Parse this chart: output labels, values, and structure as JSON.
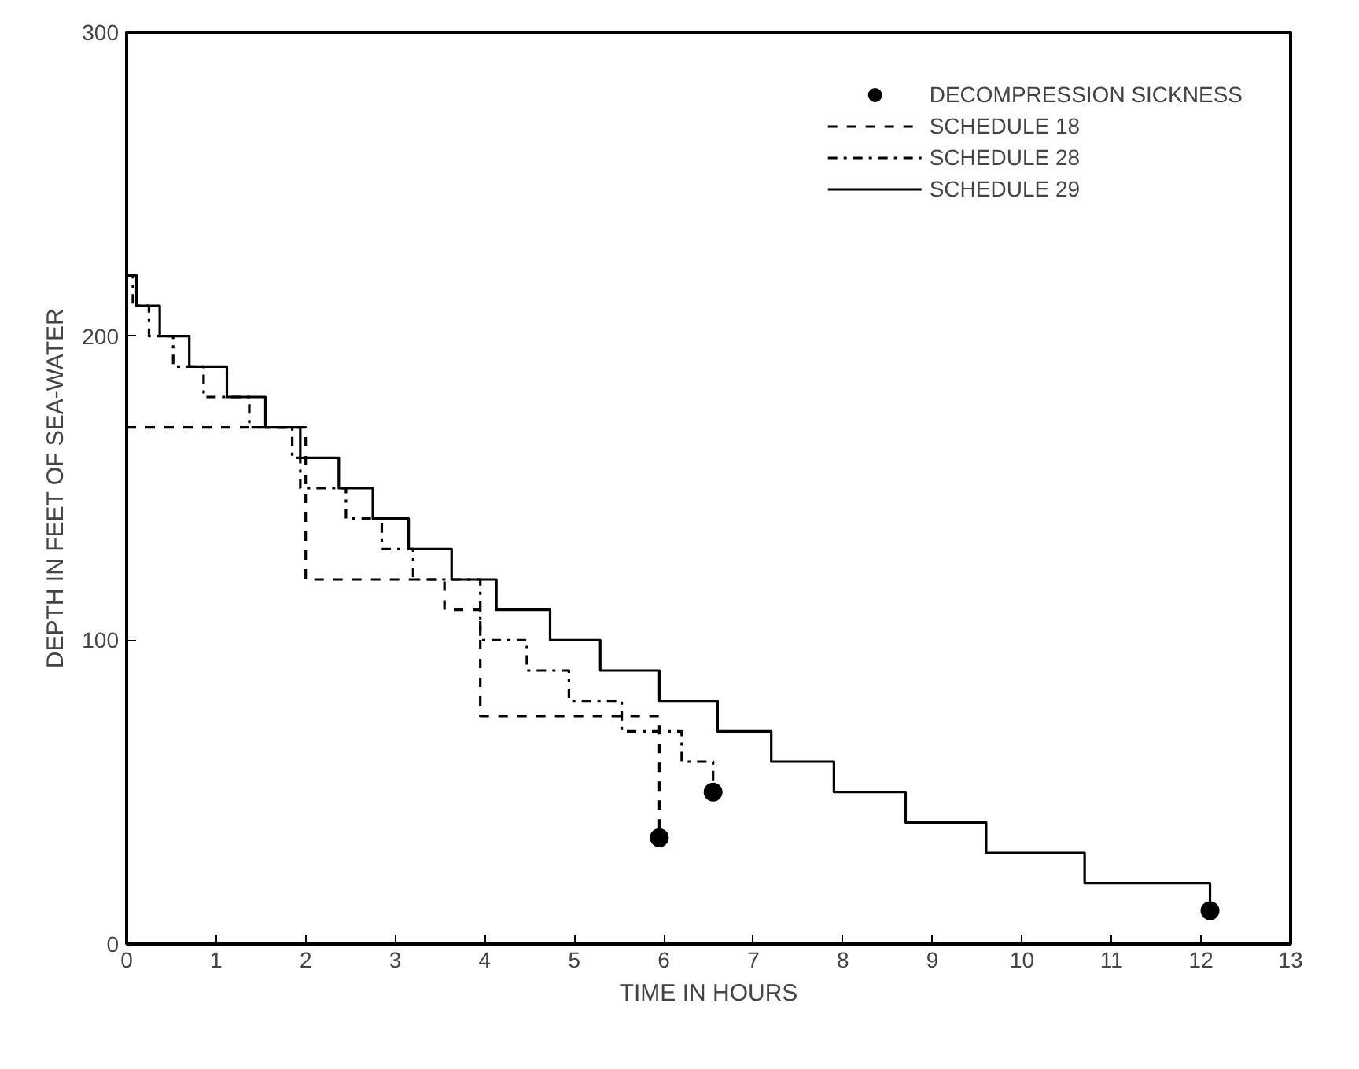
{
  "chart_data": {
    "type": "step",
    "xlabel": "TIME IN HOURS",
    "ylabel": "DEPTH IN FEET OF SEA-WATER",
    "xlim": [
      0,
      13
    ],
    "ylim": [
      0,
      300
    ],
    "xticks": [
      0,
      1,
      2,
      3,
      4,
      5,
      6,
      7,
      8,
      9,
      10,
      11,
      12,
      13
    ],
    "yticks": [
      0,
      100,
      200,
      300
    ],
    "grid": false,
    "legend": "top right",
    "series": [
      {
        "name": "DECOMPRESSION SICKNESS",
        "type": "scatter",
        "marker": "circle",
        "color": "#000000",
        "x": [
          5.95,
          6.55,
          12.1
        ],
        "values": [
          35,
          50,
          11
        ]
      },
      {
        "name": "SCHEDULE 18",
        "color": "#000000",
        "line_style": "dashed",
        "x": [
          0,
          2.0,
          3.55,
          3.95,
          5.95
        ],
        "values": [
          170,
          120,
          110,
          75,
          35
        ]
      },
      {
        "name": "SCHEDULE 28",
        "color": "#000000",
        "line_style": "dashdot",
        "x": [
          0,
          0.07,
          0.25,
          0.52,
          0.86,
          1.37,
          1.85,
          1.94,
          2.45,
          2.85,
          3.2,
          3.95,
          4.47,
          4.94,
          5.53,
          6.2,
          6.55
        ],
        "values": [
          220,
          210,
          200,
          190,
          180,
          170,
          160,
          150,
          140,
          130,
          120,
          100,
          90,
          80,
          70,
          60,
          50
        ]
      },
      {
        "name": "SCHEDULE 29",
        "color": "#000000",
        "line_style": "solid",
        "x": [
          0,
          0.11,
          0.37,
          0.7,
          1.12,
          1.55,
          1.94,
          2.37,
          2.75,
          3.15,
          3.63,
          4.13,
          4.73,
          5.29,
          5.95,
          6.6,
          7.2,
          7.9,
          8.7,
          9.6,
          10.7,
          12.1
        ],
        "values": [
          220,
          210,
          200,
          190,
          180,
          170,
          160,
          150,
          140,
          130,
          120,
          110,
          100,
          90,
          80,
          70,
          60,
          50,
          40,
          30,
          20,
          11
        ]
      }
    ]
  }
}
